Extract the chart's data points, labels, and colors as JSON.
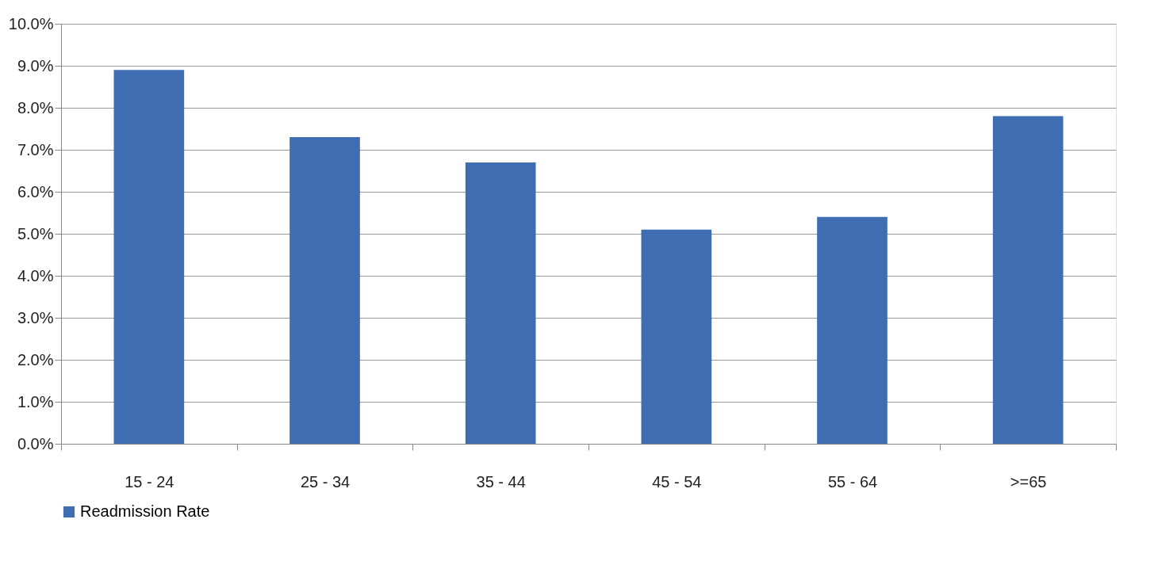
{
  "chart_data": {
    "type": "bar",
    "categories": [
      "15 - 24",
      "25 - 34",
      "35 - 44",
      "45 - 54",
      "55 - 64",
      ">=65"
    ],
    "series": [
      {
        "name": "Readmission Rate",
        "color": "#3f6db1",
        "values": [
          8.9,
          7.3,
          6.7,
          5.1,
          5.4,
          7.8
        ]
      }
    ],
    "ylim": [
      0,
      10
    ],
    "yticks": [
      {
        "value": 0,
        "label": "0.0%"
      },
      {
        "value": 1,
        "label": "1.0%"
      },
      {
        "value": 2,
        "label": "2.0%"
      },
      {
        "value": 3,
        "label": "3.0%"
      },
      {
        "value": 4,
        "label": "4.0%"
      },
      {
        "value": 5,
        "label": "5.0%"
      },
      {
        "value": 6,
        "label": "6.0%"
      },
      {
        "value": 7,
        "label": "7.0%"
      },
      {
        "value": 8,
        "label": "8.0%"
      },
      {
        "value": 9,
        "label": "9.0%"
      },
      {
        "value": 10,
        "label": "10.0%"
      }
    ],
    "grid": "y",
    "legend": "bottom"
  }
}
